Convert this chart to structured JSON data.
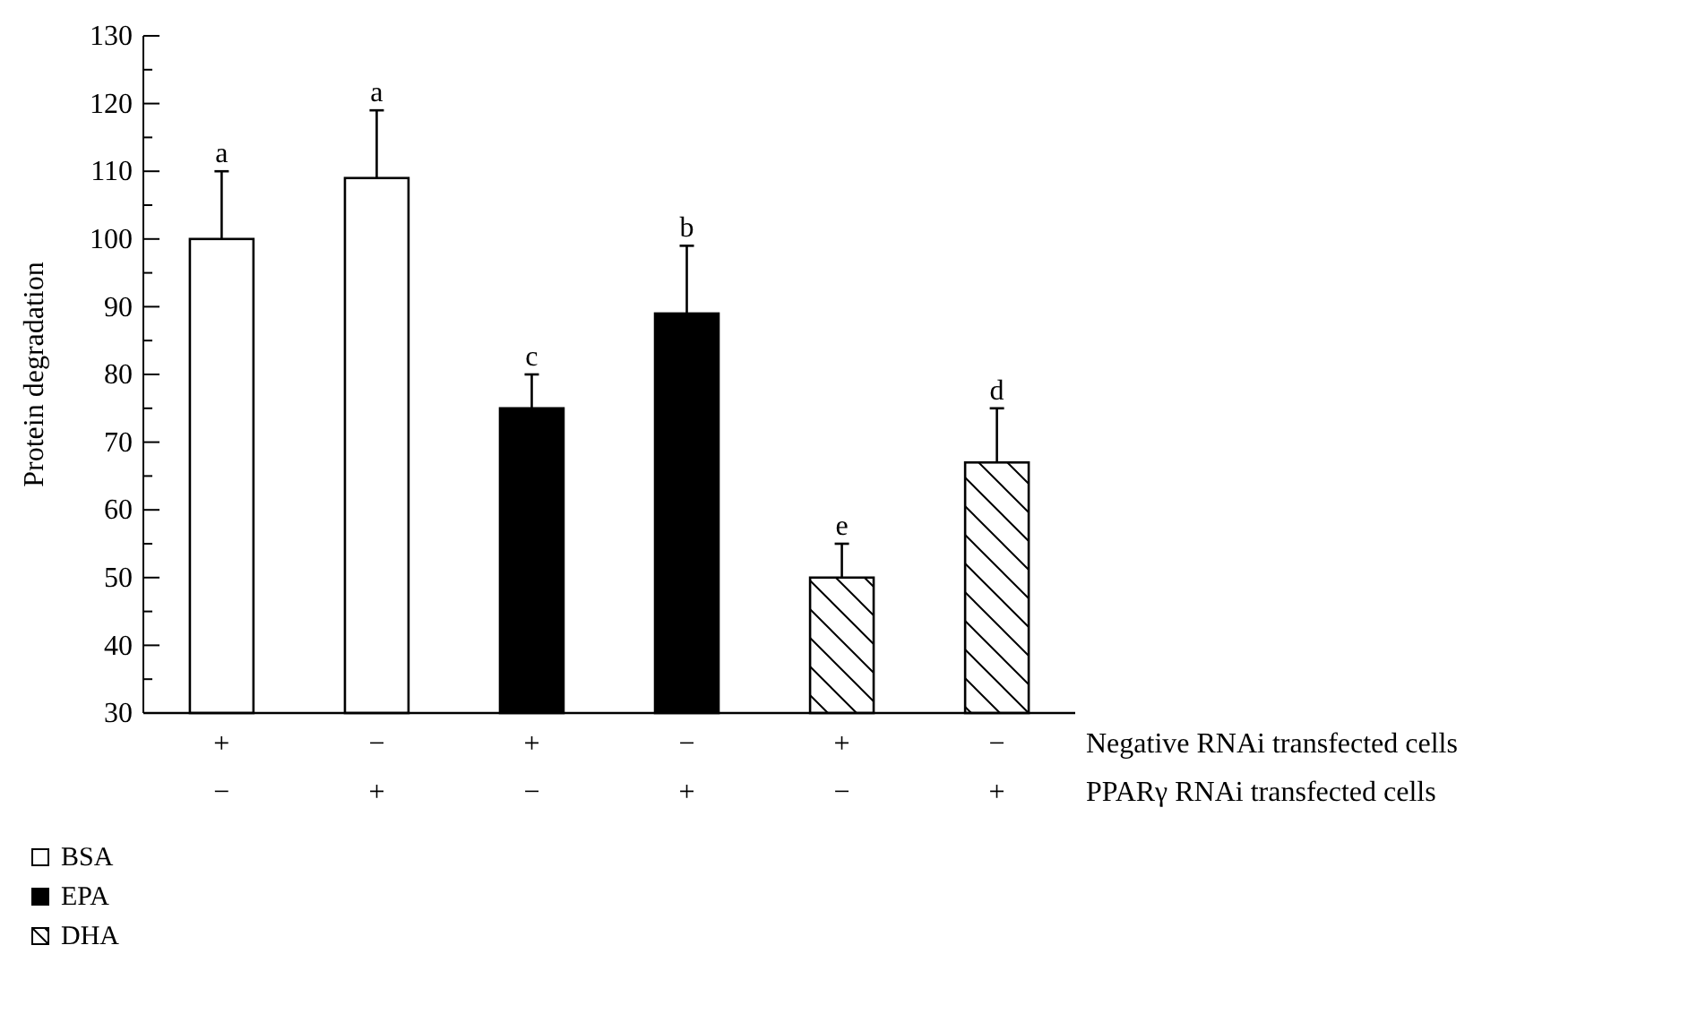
{
  "chart_data": {
    "type": "bar",
    "ylabel": "Protein degradation",
    "categories": [
      "+\n−",
      "−\n+",
      "+\n−",
      "−\n+",
      "+\n−",
      "−\n+"
    ],
    "series": [
      {
        "name": "BSA",
        "color": "#ffffff",
        "values": [
          100,
          109,
          null,
          null,
          null,
          null
        ],
        "errors": [
          [
            100,
            110
          ],
          [
            109,
            119
          ],
          null,
          null,
          null,
          null
        ],
        "value_labels": [
          "a",
          "a",
          null,
          null,
          null,
          null
        ]
      },
      {
        "name": "EPA",
        "color": "#000000",
        "values": [
          null,
          null,
          75,
          89,
          null,
          null
        ],
        "errors": [
          null,
          null,
          [
            75,
            80
          ],
          [
            89,
            99
          ],
          null,
          null
        ],
        "value_labels": [
          null,
          null,
          "c",
          "b",
          null,
          null
        ]
      },
      {
        "name": "DHA",
        "color": "#000000",
        "values": [
          null,
          null,
          null,
          null,
          50,
          67
        ],
        "errors": [
          null,
          null,
          null,
          null,
          [
            50,
            55
          ],
          [
            67,
            75
          ]
        ],
        "value_labels": [
          null,
          null,
          null,
          null,
          "e",
          "d"
        ]
      }
    ],
    "ylim": [
      30,
      130
    ],
    "yticks": [
      30,
      {
        "value": 35,
        "label": null
      },
      40,
      {
        "value": 45,
        "label": null
      },
      50,
      {
        "value": 55,
        "label": null
      },
      60,
      {
        "value": 65,
        "label": null
      },
      70,
      {
        "value": 75,
        "label": null
      },
      80,
      {
        "value": 85,
        "label": null
      },
      90,
      {
        "value": 95,
        "label": null
      },
      100,
      {
        "value": 105,
        "label": null
      },
      110,
      {
        "value": 115,
        "label": null
      },
      120,
      {
        "value": 125,
        "label": null
      },
      130
    ],
    "annotations": [
      "Negative RNAi transfected cells",
      "PPARγ RNAi transfected cells"
    ],
    "legend": "bottom left"
  }
}
